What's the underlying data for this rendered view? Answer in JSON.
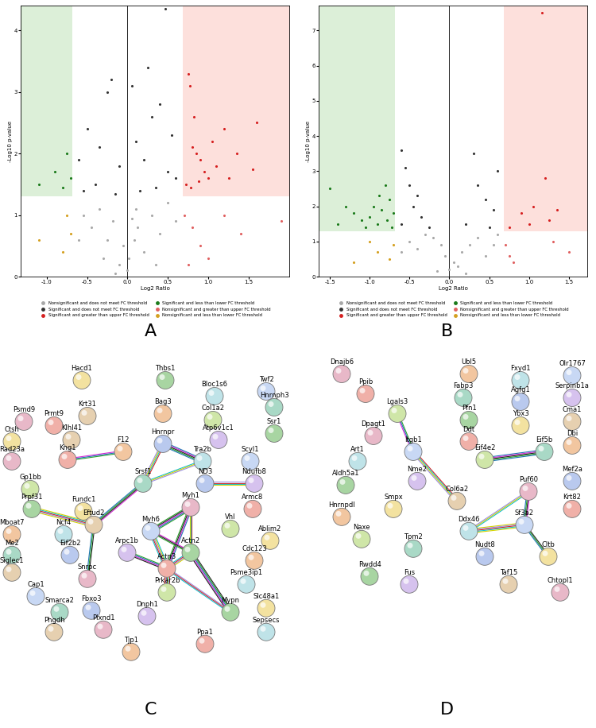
{
  "chart_data": [
    {
      "type": "scatter",
      "panel_label": "A",
      "x_label": "Log2 Ratio",
      "y_label": "-Log10 p-value",
      "xlim": [
        -1.32,
        2.0
      ],
      "ylim": [
        0,
        4.4
      ],
      "xticks": [
        {
          "value": -1,
          "label": "-1.0"
        },
        {
          "value": -0.5,
          "label": "-0.5"
        },
        {
          "value": 0,
          "label": "0.0"
        },
        {
          "value": 0.5,
          "label": "0.5"
        },
        {
          "value": 1,
          "label": "1.0"
        },
        {
          "value": 1.5,
          "label": "1.5"
        }
      ],
      "yticks": [
        0,
        1,
        2,
        3,
        4
      ],
      "fc_threshold": 0.68,
      "p_threshold": 1.3,
      "center_line": 0,
      "legend": "upper center",
      "series": [
        {
          "name": "Nonsignificant and does not meet FC threshold",
          "color": "#a8a8a8",
          "x": [
            0.0,
            0.02,
            -0.05,
            0.08,
            -0.1,
            0.12,
            -0.18,
            0.2,
            -0.25,
            0.3,
            -0.35,
            0.4,
            -0.45,
            0.5,
            -0.55,
            0.6,
            -0.6,
            0.1,
            -0.3,
            0.35,
            -0.15,
            0.05
          ],
          "y": [
            0.1,
            0.3,
            0.5,
            0.6,
            0.2,
            0.8,
            0.9,
            0.4,
            0.6,
            1.0,
            1.1,
            0.7,
            0.8,
            1.2,
            1.0,
            0.9,
            0.6,
            1.1,
            0.3,
            0.2,
            0.05,
            0.95
          ]
        },
        {
          "name": "Significant and does not meet FC threshold",
          "color": "#333333",
          "x": [
            0.47,
            -0.2,
            -0.25,
            0.05,
            -0.5,
            -0.35,
            0.3,
            0.4,
            0.1,
            0.55,
            -0.1,
            0.2,
            -0.6,
            0.6,
            -0.4,
            0.15,
            -0.15,
            0.35,
            0.5,
            -0.55,
            0.25
          ],
          "y": [
            4.35,
            3.2,
            3.0,
            3.1,
            2.4,
            2.1,
            2.6,
            2.8,
            2.2,
            2.3,
            1.8,
            1.9,
            1.9,
            1.6,
            1.5,
            1.4,
            1.35,
            1.45,
            1.7,
            1.4,
            3.4
          ]
        },
        {
          "name": "Significant and greater than upper FC threshold",
          "color": "#d62020",
          "x": [
            0.75,
            0.77,
            0.8,
            0.85,
            0.9,
            0.95,
            1.0,
            1.05,
            1.1,
            1.2,
            1.35,
            1.55,
            1.6,
            0.72,
            0.78,
            0.88,
            1.25,
            0.82
          ],
          "y": [
            3.3,
            3.1,
            2.1,
            2.0,
            1.9,
            1.7,
            1.6,
            2.2,
            1.8,
            2.4,
            2.0,
            1.75,
            2.5,
            1.5,
            1.45,
            1.55,
            1.6,
            2.6
          ]
        },
        {
          "name": "Significant and less than lower FC threshold",
          "color": "#1a7a1a",
          "x": [
            -0.7,
            -0.75,
            -0.8,
            -0.9,
            -1.1
          ],
          "y": [
            1.6,
            2.0,
            1.45,
            1.7,
            1.5
          ]
        },
        {
          "name": "Nonsignificant and greater than upper FC threshold",
          "color": "#e06060",
          "x": [
            0.7,
            0.8,
            0.9,
            1.0,
            1.2,
            1.4,
            1.9,
            0.75
          ],
          "y": [
            1.0,
            0.8,
            0.5,
            0.3,
            1.0,
            0.7,
            0.9,
            0.2
          ]
        },
        {
          "name": "Nonsignificant and less than lower FC threshold",
          "color": "#d4a020",
          "x": [
            -0.7,
            -0.8,
            -1.1,
            -0.75
          ],
          "y": [
            0.7,
            0.4,
            0.6,
            1.0
          ]
        }
      ]
    },
    {
      "type": "scatter",
      "panel_label": "B",
      "x_label": "Log2 Ratio",
      "y_label": "-Log10 p-value",
      "xlim": [
        -1.64,
        1.73
      ],
      "ylim": [
        0,
        7.7
      ],
      "xticks": [
        {
          "value": -1.5,
          "label": "-1.5"
        },
        {
          "value": -1,
          "label": "-1.0"
        },
        {
          "value": -0.5,
          "label": "-0.5"
        },
        {
          "value": 0,
          "label": "0.0"
        },
        {
          "value": 0.5,
          "label": "0.5"
        },
        {
          "value": 1,
          "label": "1.0"
        },
        {
          "value": 1.5,
          "label": "1.5"
        }
      ],
      "yticks": [
        0,
        1,
        2,
        3,
        4,
        5,
        6,
        7
      ],
      "fc_threshold": 0.68,
      "p_threshold": 1.3,
      "center_line": 0,
      "legend": "upper center",
      "series": [
        {
          "name": "Nonsignificant and does not meet FC threshold",
          "color": "#a8a8a8",
          "x": [
            0.0,
            0.05,
            -0.05,
            0.1,
            -0.1,
            -0.2,
            0.15,
            -0.3,
            0.25,
            0.35,
            -0.4,
            0.45,
            -0.5,
            0.55,
            -0.6,
            0.6,
            -0.15,
            0.2
          ],
          "y": [
            0.2,
            0.4,
            0.6,
            0.3,
            0.9,
            1.1,
            0.7,
            1.2,
            0.9,
            1.1,
            0.8,
            0.6,
            1.0,
            0.9,
            0.7,
            1.2,
            0.15,
            0.1
          ]
        },
        {
          "name": "Significant and does not meet FC threshold",
          "color": "#333333",
          "x": [
            -0.6,
            -0.55,
            -0.5,
            -0.45,
            -0.35,
            -0.6,
            0.3,
            0.35,
            0.45,
            0.55,
            0.2,
            -0.25,
            0.6,
            0.5,
            -0.4
          ],
          "y": [
            3.6,
            3.1,
            2.6,
            2.0,
            1.7,
            1.5,
            3.5,
            2.6,
            2.2,
            1.9,
            1.5,
            1.4,
            3.0,
            1.4,
            2.3
          ]
        },
        {
          "name": "Significant and greater than upper FC threshold",
          "color": "#d62020",
          "x": [
            1.16,
            0.9,
            1.05,
            1.2,
            1.25,
            1.35,
            0.75,
            1.0
          ],
          "y": [
            7.5,
            1.8,
            2.0,
            2.8,
            1.6,
            1.9,
            1.4,
            1.5
          ]
        },
        {
          "name": "Significant and less than lower FC threshold",
          "color": "#1a7a1a",
          "x": [
            -1.5,
            -1.3,
            -1.2,
            -1.1,
            -1.0,
            -0.95,
            -0.9,
            -0.85,
            -0.8,
            -0.78,
            -0.75,
            -0.72,
            -0.7,
            -1.4,
            -0.88,
            -1.05
          ],
          "y": [
            2.5,
            2.0,
            1.8,
            1.6,
            1.7,
            2.0,
            1.5,
            1.9,
            2.6,
            1.6,
            2.2,
            1.4,
            1.8,
            1.5,
            2.3,
            1.4
          ]
        },
        {
          "name": "Nonsignificant and greater than upper FC threshold",
          "color": "#e06060",
          "x": [
            0.7,
            0.75,
            1.3,
            1.5,
            0.8
          ],
          "y": [
            0.9,
            0.6,
            1.0,
            0.7,
            0.4
          ]
        },
        {
          "name": "Nonsignificant and less than lower FC threshold",
          "color": "#d4a020",
          "x": [
            -0.7,
            -0.75,
            -0.9,
            -1.0,
            -1.2
          ],
          "y": [
            0.9,
            0.5,
            0.7,
            1.0,
            0.4
          ]
        }
      ]
    }
  ],
  "networks": [
    {
      "panel_label": "C",
      "nodes": [
        "Thbs1",
        "Hacd1",
        "Krt31",
        "Psmd9",
        "Prmt9",
        "Bag3",
        "Bloc1s6",
        "Twf2",
        "Col1a2",
        "Hnrnph3",
        "Hnrnpr",
        "Atp6v1c1",
        "Ssr1",
        "Ctsh",
        "Klhl41",
        "Rad23a",
        "Kng1",
        "F12",
        "Tra2b",
        "Scyl1",
        "Gp1bb",
        "Srsf1",
        "ND3",
        "Ndufb8",
        "Prpf31",
        "Fundc1",
        "Eftud2",
        "Myh1",
        "Armc8",
        "Mboat7",
        "Ncf4",
        "Myh6",
        "Vhl",
        "Me2",
        "Eif2b2",
        "Arpc1b",
        "Actn2",
        "Ablim2",
        "Siglec1",
        "Snrpc",
        "Actn3",
        "Cdc123",
        "Psme3ip1",
        "Cap1",
        "Prkar2b",
        "Smarca2",
        "Fbxo3",
        "Dnph1",
        "Mypn",
        "Slc48a1",
        "Phgdh",
        "Plxnd1",
        "Ppa1",
        "Tjp1",
        "Sepsecs"
      ],
      "edges": [
        [
          "F12",
          "Kng1"
        ],
        [
          "Hnrnpr",
          "Srsf1"
        ],
        [
          "Hnrnpr",
          "Tra2b"
        ],
        [
          "Srsf1",
          "Tra2b"
        ],
        [
          "Srsf1",
          "Eftud2"
        ],
        [
          "Eftud2",
          "Prpf31"
        ],
        [
          "Eftud2",
          "Snrpc"
        ],
        [
          "ND3",
          "Ndufb8"
        ],
        [
          "Myh1",
          "Myh6"
        ],
        [
          "Myh1",
          "Actn2"
        ],
        [
          "Myh1",
          "Actn3"
        ],
        [
          "Myh6",
          "Actn3"
        ],
        [
          "Myh6",
          "Actn2"
        ],
        [
          "Actn2",
          "Actn3"
        ],
        [
          "Actn2",
          "Mypn"
        ],
        [
          "Actn3",
          "Mypn"
        ],
        [
          "Arpc1b",
          "Actn3"
        ],
        [
          "Actn3",
          "Prkar2b"
        ]
      ]
    },
    {
      "panel_label": "D",
      "nodes": [
        "Dnajb6",
        "Ppib",
        "Ubl5",
        "Fxyd1",
        "Olr1767",
        "Lgals3",
        "Fabp3",
        "Agfg1",
        "Serpinb1a",
        "Pfn1",
        "Ybx3",
        "Cma1",
        "Dpagt1",
        "Ddt",
        "Dbi",
        "Art1",
        "Itgb1",
        "Eif4e2",
        "Eif5b",
        "Mef2a",
        "Nme2",
        "Aldh5a1",
        "Smpx",
        "Col6a2",
        "Puf60",
        "Krt82",
        "Hnrnpdl",
        "Ddx46",
        "Sf3a2",
        "Naxe",
        "Tpm2",
        "Nudt8",
        "Fus",
        "Rwdd4",
        "Cltb",
        "Taf15",
        "Chtopl1"
      ],
      "edges": [
        [
          "Lgals3",
          "Itgb1"
        ],
        [
          "Itgb1",
          "Col6a2"
        ],
        [
          "Eif4e2",
          "Eif5b"
        ],
        [
          "Puf60",
          "Ddx46"
        ],
        [
          "Puf60",
          "Sf3a2"
        ],
        [
          "Ddx46",
          "Sf3a2"
        ],
        [
          "Sf3a2",
          "Cltb"
        ]
      ]
    }
  ]
}
